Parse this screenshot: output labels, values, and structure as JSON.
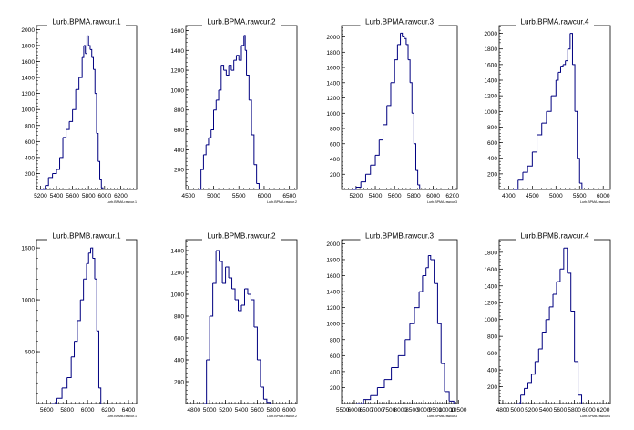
{
  "chart_data": [
    {
      "type": "histogram",
      "title": "Lurb.BPMA.rawcur.1",
      "xlabel": "Lurb.BPMA.rawcur.1",
      "xlim": [
        5150,
        6400
      ],
      "ylim": [
        0,
        2050
      ],
      "xticks": [
        5200,
        5400,
        5600,
        5800,
        6000,
        6200
      ],
      "yticks": [
        200,
        400,
        600,
        800,
        1000,
        1200,
        1400,
        1600,
        1800,
        2000
      ],
      "grid": false,
      "color": "#000080",
      "x": [
        5200,
        5260,
        5300,
        5350,
        5400,
        5440,
        5480,
        5520,
        5560,
        5600,
        5640,
        5680,
        5720,
        5740,
        5760,
        5780,
        5800,
        5820,
        5840,
        5860,
        5880,
        5900,
        5920,
        5940,
        5960,
        5980
      ],
      "values": [
        0,
        50,
        150,
        200,
        250,
        400,
        650,
        750,
        850,
        1000,
        1250,
        1400,
        1650,
        1800,
        1700,
        1920,
        1800,
        1750,
        1650,
        1500,
        1200,
        700,
        350,
        120,
        20,
        0
      ]
    },
    {
      "type": "histogram",
      "title": "Lurb.BPMA.rawcur.2",
      "xlabel": "Lurb.BPMA.rawcur.2",
      "xlim": [
        4450,
        6650
      ],
      "ylim": [
        0,
        1650
      ],
      "xticks": [
        4500,
        5000,
        5500,
        6000,
        6500
      ],
      "yticks": [
        200,
        400,
        600,
        800,
        1000,
        1200,
        1400,
        1600
      ],
      "grid": false,
      "color": "#000080",
      "x": [
        4700,
        4750,
        4800,
        4850,
        4900,
        4950,
        5000,
        5050,
        5100,
        5150,
        5200,
        5250,
        5300,
        5350,
        5400,
        5450,
        5500,
        5550,
        5600,
        5625,
        5650,
        5700,
        5750,
        5800,
        5850,
        5900
      ],
      "values": [
        0,
        200,
        350,
        450,
        520,
        600,
        800,
        900,
        1000,
        1250,
        1200,
        1150,
        1250,
        1200,
        1300,
        1350,
        1300,
        1450,
        1550,
        1400,
        1150,
        900,
        550,
        250,
        60,
        0
      ]
    },
    {
      "type": "histogram",
      "title": "Lurb.BPMA.rawcur.3",
      "xlabel": "Lurb.BPMA.rawcur.3",
      "xlim": [
        5050,
        6250
      ],
      "ylim": [
        0,
        2150
      ],
      "xticks": [
        5200,
        5400,
        5600,
        5800,
        6000,
        6200
      ],
      "yticks": [
        200,
        400,
        600,
        800,
        1000,
        1200,
        1400,
        1600,
        1800,
        2000
      ],
      "grid": false,
      "color": "#000080",
      "x": [
        5150,
        5200,
        5250,
        5300,
        5350,
        5400,
        5440,
        5480,
        5520,
        5560,
        5600,
        5630,
        5660,
        5680,
        5700,
        5720,
        5740,
        5760,
        5780,
        5800,
        5820,
        5840,
        5860
      ],
      "values": [
        0,
        30,
        100,
        200,
        320,
        450,
        650,
        850,
        1100,
        1400,
        1700,
        1900,
        2050,
        2000,
        1980,
        1900,
        1700,
        1400,
        1000,
        600,
        250,
        60,
        0
      ]
    },
    {
      "type": "histogram",
      "title": "Lurb.BPMA.rawcur.4",
      "xlabel": "Lurb.BPMA.rawcur.4",
      "xlim": [
        3800,
        6150
      ],
      "ylim": [
        0,
        2100
      ],
      "xticks": [
        4000,
        4500,
        5000,
        5500,
        6000
      ],
      "yticks": [
        200,
        400,
        600,
        800,
        1000,
        1200,
        1400,
        1600,
        1800,
        2000
      ],
      "grid": false,
      "color": "#000080",
      "x": [
        4100,
        4200,
        4300,
        4400,
        4500,
        4600,
        4700,
        4800,
        4900,
        5000,
        5050,
        5100,
        5150,
        5200,
        5250,
        5300,
        5350,
        5400,
        5450,
        5500,
        5550
      ],
      "values": [
        0,
        120,
        220,
        300,
        480,
        700,
        850,
        1000,
        1200,
        1400,
        1500,
        1580,
        1600,
        1650,
        1800,
        2000,
        1600,
        1000,
        400,
        80,
        0
      ]
    },
    {
      "type": "histogram",
      "title": "Lurb.BPMB.rawcur.1",
      "xlabel": "Lurb.BPMB.rawcur.1",
      "xlim": [
        5500,
        6480
      ],
      "ylim": [
        0,
        1580
      ],
      "xticks": [
        5600,
        5800,
        6000,
        6200,
        6400
      ],
      "yticks": [
        500,
        1000,
        1500
      ],
      "grid": false,
      "color": "#000080",
      "x": [
        5650,
        5700,
        5750,
        5800,
        5840,
        5870,
        5900,
        5930,
        5960,
        5990,
        6010,
        6030,
        6050,
        6070,
        6090,
        6110,
        6130
      ],
      "values": [
        0,
        50,
        150,
        250,
        450,
        600,
        800,
        1000,
        1200,
        1350,
        1450,
        1500,
        1400,
        1200,
        700,
        150,
        0
      ]
    },
    {
      "type": "histogram",
      "title": "Lurb.BPMB.rawcur.2",
      "xlabel": "Lurb.BPMB.rawcur.2",
      "xlim": [
        4700,
        6100
      ],
      "ylim": [
        0,
        1500
      ],
      "xticks": [
        4800,
        5000,
        5200,
        5400,
        5600,
        5800,
        6000
      ],
      "yticks": [
        200,
        400,
        600,
        800,
        1000,
        1200,
        1400
      ],
      "grid": false,
      "color": "#000080",
      "x": [
        4920,
        4960,
        5000,
        5040,
        5080,
        5120,
        5160,
        5200,
        5240,
        5280,
        5320,
        5360,
        5400,
        5440,
        5480,
        5520,
        5560,
        5600,
        5640,
        5680,
        5720,
        5760
      ],
      "values": [
        0,
        400,
        800,
        1100,
        1400,
        1300,
        1100,
        1250,
        1150,
        1050,
        950,
        850,
        900,
        1050,
        1000,
        950,
        700,
        400,
        150,
        40,
        10,
        0
      ]
    },
    {
      "type": "histogram",
      "title": "Lurb.BPMB.rawcur.3",
      "xlabel": "Lurb.BPMB.rawcur.3",
      "xlim": [
        5450,
        10450
      ],
      "ylim": [
        0,
        2050
      ],
      "xticks": [
        5500,
        6000,
        6500,
        7000,
        7500,
        8000,
        8500,
        9000,
        9500,
        10000,
        10500
      ],
      "xtick_labels": [
        "5500",
        "6000",
        "6500",
        "7000",
        "7500",
        "8000",
        "8500",
        "9000",
        "9500",
        "10000",
        "10500"
      ],
      "yticks": [
        200,
        400,
        600,
        800,
        1000,
        1200,
        1400,
        1600,
        1800,
        2000
      ],
      "grid": false,
      "color": "#000080",
      "x": [
        6100,
        6400,
        6700,
        7000,
        7300,
        7600,
        7900,
        8200,
        8400,
        8600,
        8800,
        8950,
        9100,
        9200,
        9300,
        9450,
        9600,
        9750,
        9900,
        10100,
        10300
      ],
      "values": [
        0,
        50,
        100,
        200,
        300,
        450,
        600,
        800,
        1000,
        1200,
        1400,
        1600,
        1700,
        1850,
        1800,
        1500,
        1000,
        500,
        150,
        30,
        0
      ]
    },
    {
      "type": "histogram",
      "title": "Lurb.BPMB.rawcur.4",
      "xlabel": "Lurb.BPMB.rawcur.4",
      "xlim": [
        4750,
        6300
      ],
      "ylim": [
        0,
        1950
      ],
      "xticks": [
        4800,
        5000,
        5200,
        5400,
        5600,
        5800,
        6000,
        6200
      ],
      "xtick_labels": [
        "4800",
        "5000",
        "5200",
        "5400",
        "5600",
        "5800",
        "6000",
        "6200"
      ],
      "yticks": [
        200,
        400,
        600,
        800,
        1000,
        1200,
        1400,
        1600,
        1800
      ],
      "grid": false,
      "color": "#000080",
      "x": [
        5000,
        5050,
        5100,
        5150,
        5200,
        5250,
        5300,
        5350,
        5400,
        5450,
        5500,
        5550,
        5600,
        5650,
        5700,
        5750,
        5800,
        5850,
        5900
      ],
      "values": [
        0,
        100,
        180,
        250,
        350,
        500,
        650,
        850,
        1000,
        1150,
        1300,
        1450,
        1600,
        1850,
        1550,
        1100,
        500,
        100,
        0
      ]
    }
  ]
}
